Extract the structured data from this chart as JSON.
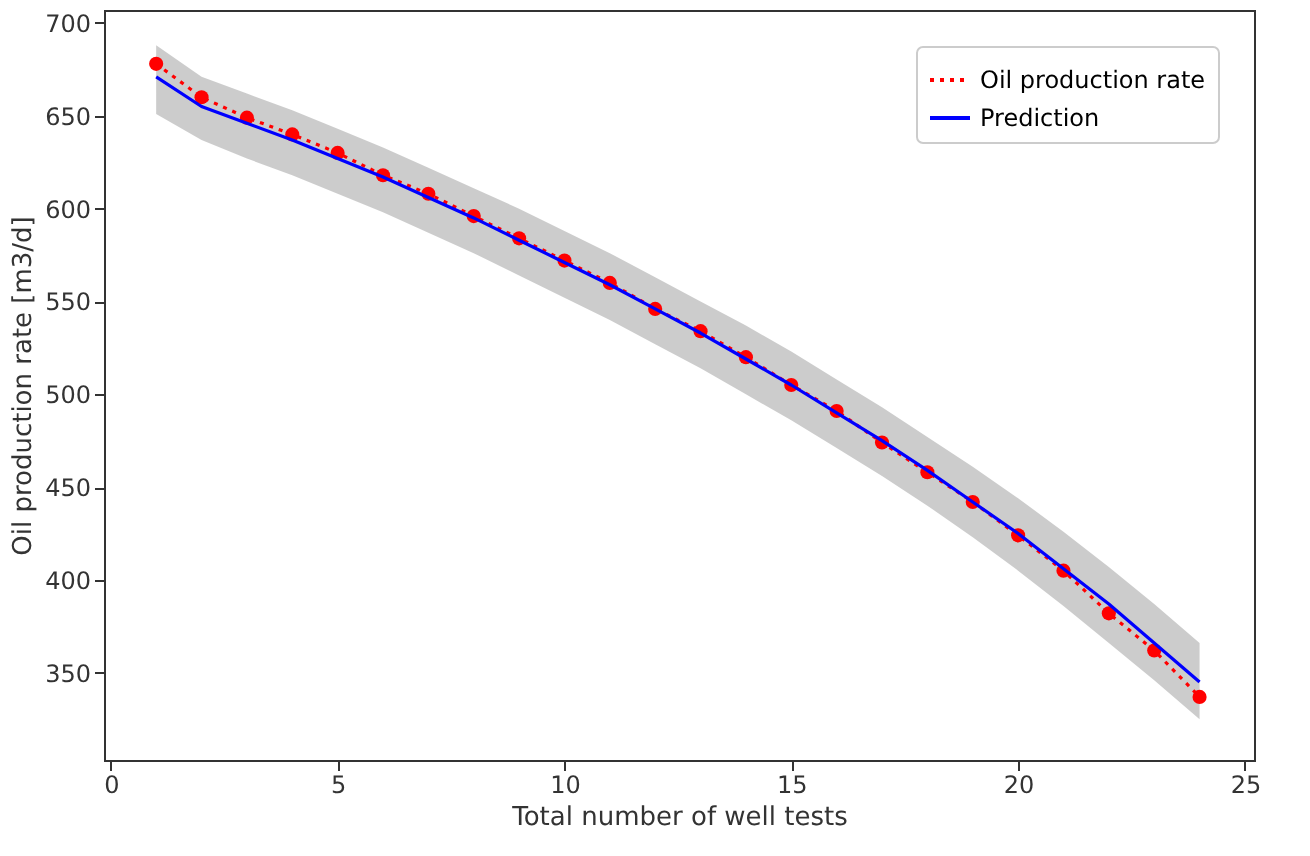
{
  "chart_data": {
    "type": "line",
    "xlabel": "Total number of well tests",
    "ylabel": "Oil production rate [m3/d]",
    "x": [
      1,
      2,
      3,
      4,
      5,
      6,
      7,
      8,
      9,
      10,
      11,
      12,
      13,
      14,
      15,
      16,
      17,
      18,
      19,
      20,
      21,
      22,
      23,
      24
    ],
    "series": [
      {
        "name": "Oil production rate",
        "color": "#ff0000",
        "line_style": "dotted",
        "marker": "circle",
        "values": [
          678,
          660,
          649,
          640,
          630,
          618,
          608,
          596,
          584,
          572,
          560,
          546,
          534,
          520,
          505,
          491,
          474,
          458,
          442,
          424,
          405,
          382,
          362,
          337
        ]
      },
      {
        "name": "Prediction",
        "color": "#0000ff",
        "line_style": "solid",
        "marker": "none",
        "values": [
          671,
          655,
          646,
          637,
          627,
          617,
          606,
          595,
          583,
          571,
          559,
          546,
          533,
          519,
          505,
          490,
          475,
          459,
          442,
          425,
          406,
          387,
          366,
          345
        ],
        "upper": [
          688,
          671,
          662,
          653,
          643,
          633,
          622,
          611,
          600,
          588,
          576,
          563,
          550,
          537,
          523,
          508,
          493,
          477,
          461,
          444,
          426,
          407,
          387,
          366
        ],
        "lower": [
          651,
          637,
          627,
          618,
          608,
          598,
          587,
          576,
          564,
          552,
          540,
          527,
          514,
          500,
          486,
          471,
          456,
          440,
          423,
          405,
          386,
          366,
          346,
          325
        ]
      }
    ],
    "xlim": [
      -0.15,
      25.2
    ],
    "xticks": [
      0,
      5,
      10,
      15,
      20,
      25
    ],
    "ylim": [
      303,
      707
    ],
    "yticks": [
      350,
      400,
      450,
      500,
      550,
      600,
      650,
      700
    ],
    "grid": false,
    "legend": "top right"
  }
}
